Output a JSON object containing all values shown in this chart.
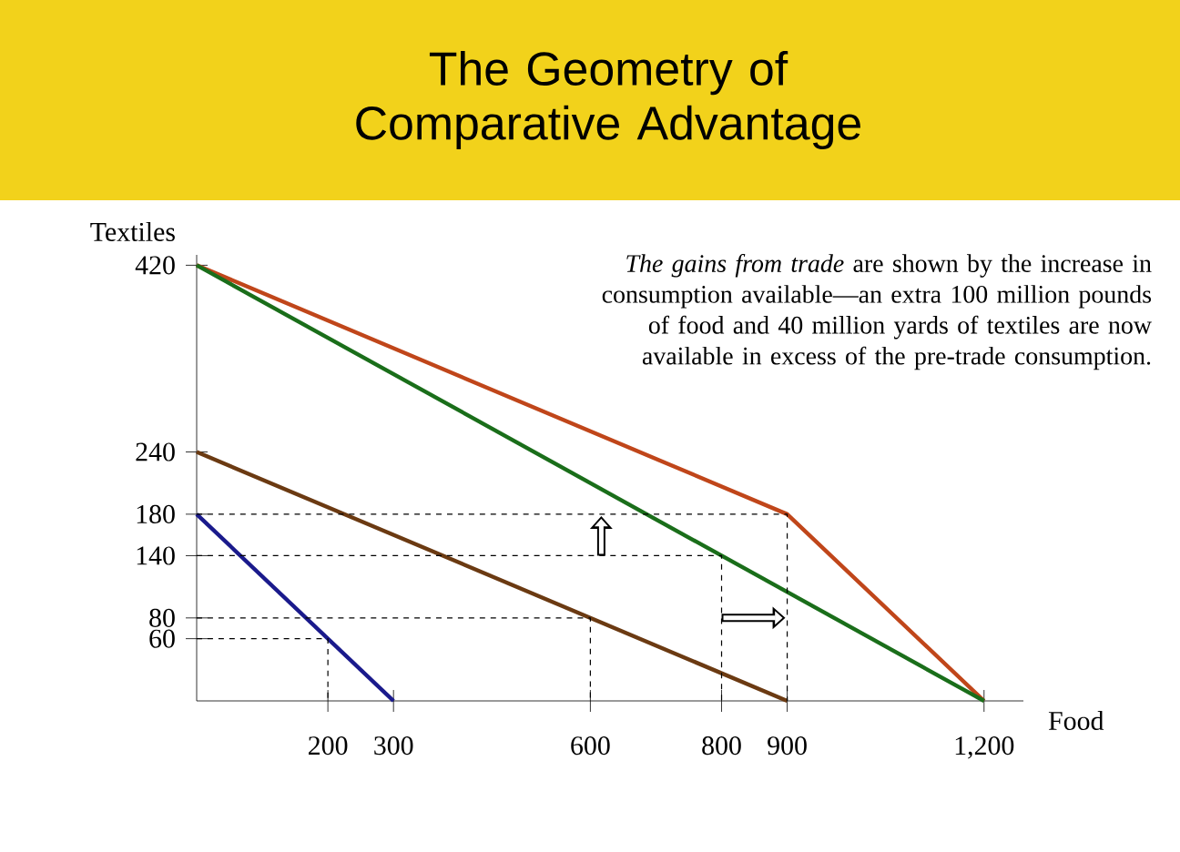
{
  "chart_data": {
    "type": "line",
    "title": "The Geometry of Comparative Advantage",
    "xlabel": "Food",
    "ylabel": "Textiles",
    "annotations": [
      "*The gains from trade* are shown by the increase in consumption available—an extra 100 million pounds of food and 40 million yards of textiles are now available in excess of the pre-trade consumption."
    ],
    "xlim": [
      0,
      1260
    ],
    "ylim": [
      0,
      430
    ],
    "xticks": [
      200,
      300,
      600,
      800,
      900,
      {
        "value": 1200,
        "label": "1,200"
      }
    ],
    "yticks": [
      60,
      80,
      140,
      180,
      240,
      420
    ],
    "line_style": "solid",
    "series": [
      {
        "color": "#c0461a",
        "x": [
          0,
          900,
          1200
        ],
        "values": [
          420,
          180,
          0
        ]
      },
      {
        "color": "#1a6e1a",
        "x": [
          0,
          1200
        ],
        "values": [
          420,
          0
        ]
      },
      {
        "color": "#6b3a12",
        "x": [
          0,
          900
        ],
        "values": [
          240,
          0
        ]
      },
      {
        "color": "#1a1a8c",
        "x": [
          0,
          300
        ],
        "values": [
          180,
          0
        ]
      },
      {
        "color": "#000000",
        "line_style": "dashed",
        "x": [
          0,
          200,
          200
        ],
        "values": [
          60,
          60,
          0
        ]
      },
      {
        "color": "#000000",
        "line_style": "dashed",
        "x": [
          0,
          600,
          600
        ],
        "values": [
          80,
          80,
          0
        ]
      },
      {
        "color": "#000000",
        "line_style": "dashed",
        "x": [
          0,
          800,
          800
        ],
        "values": [
          140,
          140,
          0
        ]
      },
      {
        "color": "#000000",
        "line_style": "dashed",
        "x": [
          0,
          900,
          900
        ],
        "values": [
          180,
          180,
          0
        ]
      }
    ]
  }
}
